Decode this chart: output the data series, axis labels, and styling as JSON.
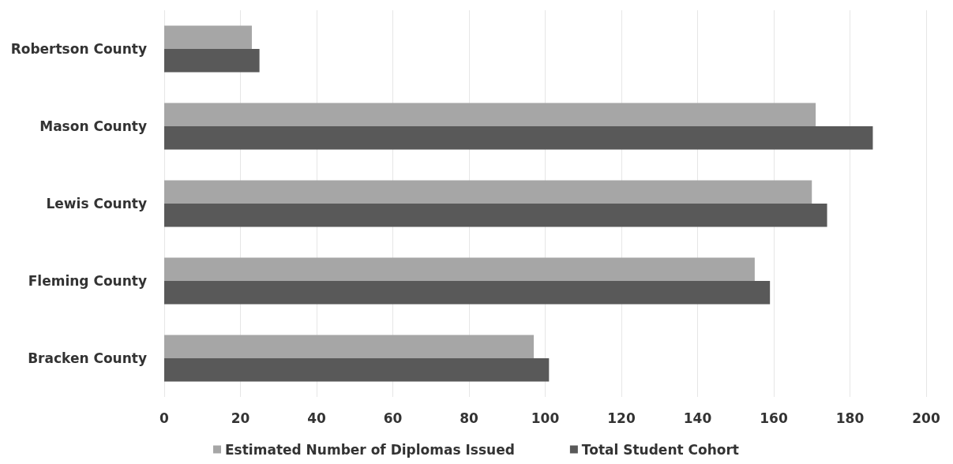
{
  "chart_data": {
    "type": "bar",
    "orientation": "horizontal",
    "categories": [
      "Robertson County",
      "Mason County",
      "Lewis County",
      "Fleming County",
      "Bracken County"
    ],
    "series": [
      {
        "name": "Estimated Number of Diplomas Issued",
        "color": "#a6a6a6",
        "values": [
          23,
          171,
          170,
          155,
          97
        ]
      },
      {
        "name": "Total Student Cohort",
        "color": "#595959",
        "values": [
          25,
          186,
          174,
          159,
          101
        ]
      }
    ],
    "xlim": [
      0,
      200
    ],
    "xticks": [
      0,
      20,
      40,
      60,
      80,
      100,
      120,
      140,
      160,
      180,
      200
    ],
    "grid": "x",
    "legend": "bottom"
  }
}
